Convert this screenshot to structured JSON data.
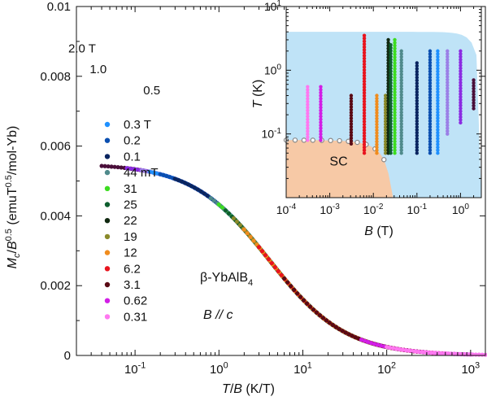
{
  "chart_data": [
    {
      "type": "scatter",
      "xscale": "log",
      "xlim": [
        0.02,
        1500
      ],
      "ylim": [
        0,
        0.01
      ],
      "xlabel": "T/B (K/T)",
      "ylabel": "Mc/B0.5 (emuT0.5/mol-Yb)",
      "xticks": [
        {
          "value": 0.1,
          "mant": "10",
          "exp": "-1"
        },
        {
          "value": 1,
          "mant": "10",
          "exp": "0"
        },
        {
          "value": 10,
          "mant": "10",
          "exp": "1"
        },
        {
          "value": 100,
          "mant": "10",
          "exp": "2"
        },
        {
          "value": 1000,
          "mant": "10",
          "exp": "3"
        }
      ],
      "yticks": [
        {
          "value": 0,
          "label": "0"
        },
        {
          "value": 0.002,
          "label": "0.002"
        },
        {
          "value": 0.004,
          "label": "0.004"
        },
        {
          "value": 0.006,
          "label": "0.006"
        },
        {
          "value": 0.008,
          "label": "0.008"
        },
        {
          "value": 0.01,
          "label": "0.01"
        }
      ],
      "legend": {
        "placement": "left",
        "entries": [
          "0.3 T",
          "0.2",
          "0.1",
          "44 mT",
          "31",
          "25",
          "22",
          "19",
          "12",
          "6.2",
          "3.1",
          "0.62",
          "0.31"
        ]
      },
      "annotations": [
        "β-YbAlB4",
        "B // c"
      ],
      "series": [
        {
          "name": "2.0 T",
          "color": "#4a0f3a",
          "x_range": [
            0.04,
            0.2
          ],
          "label_x": 0.025,
          "label_y": 0.0088
        },
        {
          "name": "1.0",
          "color": "#8b2be2",
          "x_range": [
            0.08,
            30
          ],
          "label_x": 0.045,
          "label_y": 0.0082
        },
        {
          "name": "0.5",
          "color": "#9b7fe6",
          "x_range": [
            0.12,
            20
          ],
          "label_x": 0.12,
          "label_y": 0.0076
        },
        {
          "name": "0.3 T",
          "color": "#1e90ff",
          "x_range": [
            0.15,
            15
          ]
        },
        {
          "name": "0.2",
          "color": "#0b4fb0",
          "x_range": [
            0.2,
            20
          ]
        },
        {
          "name": "0.1",
          "color": "#0a2560",
          "x_range": [
            0.3,
            25
          ]
        },
        {
          "name": "44 mT",
          "color": "#4f8a8b",
          "x_range": [
            0.8,
            30
          ]
        },
        {
          "name": "31",
          "color": "#3ddc20",
          "x_range": [
            1,
            100
          ]
        },
        {
          "name": "25",
          "color": "#0e5e2e",
          "x_range": [
            1.2,
            120
          ]
        },
        {
          "name": "22",
          "color": "#102810",
          "x_range": [
            1.5,
            140
          ]
        },
        {
          "name": "19",
          "color": "#8a8a2a",
          "x_range": [
            1.5,
            160
          ]
        },
        {
          "name": "12",
          "color": "#f08c1e",
          "x_range": [
            2,
            250
          ]
        },
        {
          "name": "6.2",
          "color": "#e8141e",
          "x_range": [
            3,
            500
          ]
        },
        {
          "name": "3.1",
          "color": "#5a0a14",
          "x_range": [
            6,
            300
          ]
        },
        {
          "name": "0.62",
          "color": "#d21ee6",
          "x_range": [
            50,
            1000
          ]
        },
        {
          "name": "0.31",
          "color": "#ff78f0",
          "x_range": [
            100,
            1500
          ]
        }
      ]
    },
    {
      "type": "scatter",
      "xscale": "log",
      "yscale": "log",
      "xlim": [
        0.0001,
        3
      ],
      "ylim": [
        0.01,
        10
      ],
      "xlabel": "B (T)",
      "ylabel": "T (K)",
      "xticks": [
        {
          "value": 0.0001,
          "mant": "10",
          "exp": "-4"
        },
        {
          "value": 0.001,
          "mant": "10",
          "exp": "-3"
        },
        {
          "value": 0.01,
          "mant": "10",
          "exp": "-2"
        },
        {
          "value": 0.1,
          "mant": "10",
          "exp": "-1"
        },
        {
          "value": 1,
          "mant": "10",
          "exp": "0"
        }
      ],
      "yticks": [
        {
          "value": 0.1,
          "mant": "10",
          "exp": "-1"
        },
        {
          "value": 1,
          "mant": "10",
          "exp": "0"
        },
        {
          "value": 10,
          "mant": "10",
          "exp": "1"
        }
      ],
      "region_labels": [
        "SC"
      ],
      "fields": [
        {
          "B": 0.00031,
          "tmin": 0.08,
          "tmax": 0.55,
          "color": "#ff78f0"
        },
        {
          "B": 0.00062,
          "tmin": 0.08,
          "tmax": 0.55,
          "color": "#d21ee6"
        },
        {
          "B": 0.0031,
          "tmin": 0.07,
          "tmax": 0.4,
          "color": "#5a0a14"
        },
        {
          "B": 0.0062,
          "tmin": 0.05,
          "tmax": 3.5,
          "color": "#e8141e"
        },
        {
          "B": 0.012,
          "tmin": 0.05,
          "tmax": 0.4,
          "color": "#f08c1e"
        },
        {
          "B": 0.019,
          "tmin": 0.05,
          "tmax": 0.4,
          "color": "#8a8a2a"
        },
        {
          "B": 0.022,
          "tmin": 0.05,
          "tmax": 3.0,
          "color": "#102810"
        },
        {
          "B": 0.025,
          "tmin": 0.05,
          "tmax": 2.5,
          "color": "#0e5e2e"
        },
        {
          "B": 0.031,
          "tmin": 0.05,
          "tmax": 3.0,
          "color": "#3ddc20"
        },
        {
          "B": 0.044,
          "tmin": 0.05,
          "tmax": 2.0,
          "color": "#4f8a8b"
        },
        {
          "B": 0.1,
          "tmin": 0.05,
          "tmax": 1.3,
          "color": "#0a2560"
        },
        {
          "B": 0.2,
          "tmin": 0.05,
          "tmax": 2.0,
          "color": "#0b4fb0"
        },
        {
          "B": 0.3,
          "tmin": 0.05,
          "tmax": 2.0,
          "color": "#1e90ff"
        },
        {
          "B": 0.5,
          "tmin": 0.1,
          "tmax": 2.0,
          "color": "#9b7fe6"
        },
        {
          "B": 1.0,
          "tmin": 0.15,
          "tmax": 2.0,
          "color": "#8b2be2"
        },
        {
          "B": 2.0,
          "tmin": 0.25,
          "tmax": 0.7,
          "color": "#4a0f3a"
        }
      ],
      "colors": {
        "fl_region": "#bfe3f7",
        "sc_region": "#f7c9a6",
        "boundary_points": "#888888"
      }
    }
  ]
}
